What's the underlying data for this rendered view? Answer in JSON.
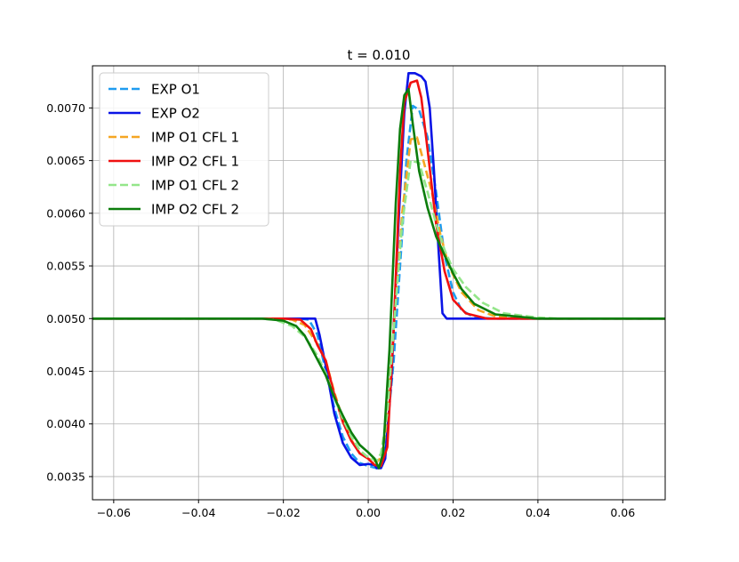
{
  "chart_data": {
    "type": "line",
    "title": "t = 0.010",
    "xlabel": "",
    "ylabel": "",
    "xlim": [
      -0.065,
      0.07
    ],
    "ylim": [
      0.00328,
      0.0074
    ],
    "grid": true,
    "legend_position": "top-left",
    "x_ticks": [
      -0.06,
      -0.04,
      -0.02,
      0.0,
      0.02,
      0.04,
      0.06
    ],
    "x_tick_labels": [
      "−0.06",
      "−0.04",
      "−0.02",
      "0.00",
      "0.02",
      "0.04",
      "0.06"
    ],
    "y_ticks": [
      0.0035,
      0.004,
      0.0045,
      0.005,
      0.0055,
      0.006,
      0.0065,
      0.007
    ],
    "y_tick_labels": [
      "0.0035",
      "0.0040",
      "0.0045",
      "0.0050",
      "0.0055",
      "0.0060",
      "0.0065",
      "0.0070"
    ],
    "series": [
      {
        "name": "EXP O1",
        "color": "#1f9cf0",
        "dash": true,
        "points": [
          [
            -0.065,
            0.005
          ],
          [
            -0.02,
            0.005
          ],
          [
            -0.016,
            0.005
          ],
          [
            -0.014,
            0.00499
          ],
          [
            -0.012,
            0.00485
          ],
          [
            -0.01,
            0.0045
          ],
          [
            -0.008,
            0.00415
          ],
          [
            -0.006,
            0.00388
          ],
          [
            -0.004,
            0.00372
          ],
          [
            -0.002,
            0.00363
          ],
          [
            0.0,
            0.0036
          ],
          [
            0.002,
            0.00358
          ],
          [
            0.003,
            0.0036
          ],
          [
            0.004,
            0.00375
          ],
          [
            0.006,
            0.0046
          ],
          [
            0.008,
            0.0058
          ],
          [
            0.009,
            0.0065
          ],
          [
            0.0105,
            0.00702
          ],
          [
            0.012,
            0.00698
          ],
          [
            0.014,
            0.00672
          ],
          [
            0.016,
            0.0062
          ],
          [
            0.018,
            0.0056
          ],
          [
            0.02,
            0.00525
          ],
          [
            0.022,
            0.00508
          ],
          [
            0.025,
            0.00501
          ],
          [
            0.03,
            0.005
          ],
          [
            0.07,
            0.005
          ]
        ]
      },
      {
        "name": "EXP O2",
        "color": "#0a14e6",
        "dash": false,
        "points": [
          [
            -0.065,
            0.005
          ],
          [
            -0.015,
            0.005
          ],
          [
            -0.0125,
            0.005
          ],
          [
            -0.0115,
            0.00485
          ],
          [
            -0.01,
            0.00455
          ],
          [
            -0.008,
            0.0041
          ],
          [
            -0.006,
            0.00382
          ],
          [
            -0.004,
            0.00368
          ],
          [
            -0.002,
            0.00361
          ],
          [
            0.0,
            0.00362
          ],
          [
            0.0015,
            0.00361
          ],
          [
            0.002,
            0.00358
          ],
          [
            0.003,
            0.00358
          ],
          [
            0.004,
            0.00367
          ],
          [
            0.0055,
            0.00445
          ],
          [
            0.007,
            0.0058
          ],
          [
            0.0085,
            0.00695
          ],
          [
            0.0095,
            0.00733
          ],
          [
            0.011,
            0.00733
          ],
          [
            0.0125,
            0.0073
          ],
          [
            0.0135,
            0.00725
          ],
          [
            0.0145,
            0.007
          ],
          [
            0.0155,
            0.0064
          ],
          [
            0.0165,
            0.0057
          ],
          [
            0.0175,
            0.00505
          ],
          [
            0.0185,
            0.005
          ],
          [
            0.07,
            0.005
          ]
        ]
      },
      {
        "name": "IMP O1 CFL 1",
        "color": "#f5a623",
        "dash": true,
        "points": [
          [
            -0.065,
            0.005
          ],
          [
            -0.022,
            0.005
          ],
          [
            -0.018,
            0.00499
          ],
          [
            -0.015,
            0.00494
          ],
          [
            -0.012,
            0.00476
          ],
          [
            -0.01,
            0.0046
          ],
          [
            -0.008,
            0.0043
          ],
          [
            -0.006,
            0.00405
          ],
          [
            -0.004,
            0.00385
          ],
          [
            -0.002,
            0.00372
          ],
          [
            0.0,
            0.00367
          ],
          [
            0.002,
            0.00364
          ],
          [
            0.003,
            0.00368
          ],
          [
            0.004,
            0.0039
          ],
          [
            0.006,
            0.0049
          ],
          [
            0.008,
            0.006
          ],
          [
            0.01,
            0.0067
          ],
          [
            0.0115,
            0.00672
          ],
          [
            0.013,
            0.0065
          ],
          [
            0.015,
            0.0062
          ],
          [
            0.017,
            0.0058
          ],
          [
            0.019,
            0.0055
          ],
          [
            0.022,
            0.00525
          ],
          [
            0.026,
            0.00508
          ],
          [
            0.03,
            0.00502
          ],
          [
            0.035,
            0.005
          ],
          [
            0.07,
            0.005
          ]
        ]
      },
      {
        "name": "IMP O2 CFL 1",
        "color": "#f01010",
        "dash": false,
        "points": [
          [
            -0.065,
            0.005
          ],
          [
            -0.02,
            0.005
          ],
          [
            -0.016,
            0.00499
          ],
          [
            -0.0135,
            0.0049
          ],
          [
            -0.012,
            0.00475
          ],
          [
            -0.01,
            0.0046
          ],
          [
            -0.008,
            0.00428
          ],
          [
            -0.006,
            0.00402
          ],
          [
            -0.004,
            0.00384
          ],
          [
            -0.002,
            0.00372
          ],
          [
            0.0,
            0.00367
          ],
          [
            0.0015,
            0.00361
          ],
          [
            0.003,
            0.0036
          ],
          [
            0.0045,
            0.00378
          ],
          [
            0.006,
            0.0049
          ],
          [
            0.0075,
            0.0064
          ],
          [
            0.0085,
            0.00705
          ],
          [
            0.01,
            0.00724
          ],
          [
            0.0115,
            0.00726
          ],
          [
            0.0125,
            0.0071
          ],
          [
            0.014,
            0.0066
          ],
          [
            0.016,
            0.0059
          ],
          [
            0.018,
            0.00545
          ],
          [
            0.02,
            0.00518
          ],
          [
            0.023,
            0.00505
          ],
          [
            0.028,
            0.005
          ],
          [
            0.07,
            0.005
          ]
        ]
      },
      {
        "name": "IMP O1 CFL 2",
        "color": "#94e68a",
        "dash": true,
        "points": [
          [
            -0.065,
            0.005
          ],
          [
            -0.026,
            0.005
          ],
          [
            -0.022,
            0.00499
          ],
          [
            -0.018,
            0.00493
          ],
          [
            -0.015,
            0.00483
          ],
          [
            -0.012,
            0.00465
          ],
          [
            -0.01,
            0.00448
          ],
          [
            -0.008,
            0.00425
          ],
          [
            -0.006,
            0.00405
          ],
          [
            -0.004,
            0.00388
          ],
          [
            -0.002,
            0.00375
          ],
          [
            0.0,
            0.00368
          ],
          [
            0.002,
            0.00365
          ],
          [
            0.003,
            0.00372
          ],
          [
            0.0045,
            0.0041
          ],
          [
            0.006,
            0.0049
          ],
          [
            0.008,
            0.0059
          ],
          [
            0.01,
            0.0065
          ],
          [
            0.012,
            0.00648
          ],
          [
            0.014,
            0.0062
          ],
          [
            0.016,
            0.0059
          ],
          [
            0.018,
            0.00565
          ],
          [
            0.02,
            0.00547
          ],
          [
            0.023,
            0.0053
          ],
          [
            0.027,
            0.00515
          ],
          [
            0.032,
            0.00505
          ],
          [
            0.04,
            0.00501
          ],
          [
            0.045,
            0.005
          ],
          [
            0.07,
            0.005
          ]
        ]
      },
      {
        "name": "IMP O2 CFL 2",
        "color": "#0c7d0c",
        "dash": false,
        "points": [
          [
            -0.065,
            0.005
          ],
          [
            -0.025,
            0.005
          ],
          [
            -0.02,
            0.00498
          ],
          [
            -0.017,
            0.00493
          ],
          [
            -0.015,
            0.00484
          ],
          [
            -0.013,
            0.00469
          ],
          [
            -0.01,
            0.00446
          ],
          [
            -0.008,
            0.00425
          ],
          [
            -0.006,
            0.00408
          ],
          [
            -0.004,
            0.00392
          ],
          [
            -0.002,
            0.0038
          ],
          [
            0.0,
            0.00373
          ],
          [
            0.0015,
            0.00367
          ],
          [
            0.0025,
            0.00358
          ],
          [
            0.0035,
            0.00372
          ],
          [
            0.005,
            0.0047
          ],
          [
            0.0065,
            0.0061
          ],
          [
            0.0075,
            0.0068
          ],
          [
            0.0085,
            0.00712
          ],
          [
            0.0095,
            0.00718
          ],
          [
            0.0105,
            0.00685
          ],
          [
            0.012,
            0.0064
          ],
          [
            0.014,
            0.00605
          ],
          [
            0.016,
            0.00578
          ],
          [
            0.018,
            0.0056
          ],
          [
            0.02,
            0.00543
          ],
          [
            0.022,
            0.00528
          ],
          [
            0.025,
            0.00514
          ],
          [
            0.03,
            0.00504
          ],
          [
            0.04,
            0.005
          ],
          [
            0.07,
            0.005
          ]
        ]
      }
    ]
  }
}
